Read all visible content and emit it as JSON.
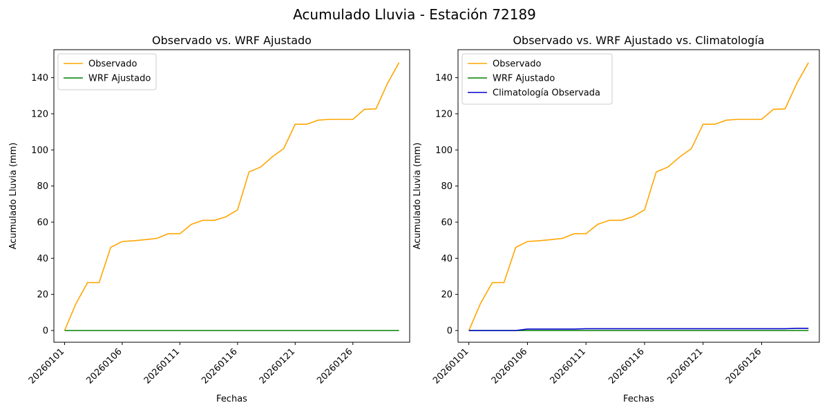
{
  "suptitle": "Acumulado Lluvia - Estación 72189",
  "chart_data": [
    {
      "type": "line",
      "title": "Observado vs. WRF Ajustado",
      "xlabel": "Fechas",
      "ylabel": "Acumulado Lluvia (mm)",
      "categories": [
        "20260101",
        "20260102",
        "20260103",
        "20260104",
        "20260105",
        "20260106",
        "20260107",
        "20260108",
        "20260109",
        "20260110",
        "20260111",
        "20260112",
        "20260113",
        "20260114",
        "20260115",
        "20260116",
        "20260117",
        "20260118",
        "20260119",
        "20260120",
        "20260121",
        "20260122",
        "20260123",
        "20260124",
        "20260125",
        "20260126",
        "20260127",
        "20260128",
        "20260129",
        "20260130"
      ],
      "xtick_labels": [
        "20260101",
        "20260106",
        "20260111",
        "20260116",
        "20260121",
        "20260126"
      ],
      "yticks": [
        0,
        20,
        40,
        60,
        80,
        100,
        120,
        140
      ],
      "ylim": [
        -6.5,
        155.5
      ],
      "legend": "top-left",
      "series": [
        {
          "name": "Observado",
          "color": "#ffa500",
          "values": [
            0,
            15,
            26.5,
            26.5,
            46,
            49.3,
            49.7,
            50.3,
            51,
            53.6,
            53.6,
            58.8,
            61,
            61,
            63,
            66.8,
            87.8,
            90.5,
            96.1,
            100.7,
            114.2,
            114.2,
            116.5,
            116.9,
            116.9,
            116.9,
            122.5,
            122.7,
            136.8,
            148.3
          ]
        },
        {
          "name": "WRF Ajustado",
          "color": "#008000",
          "values": [
            0,
            0,
            0,
            0,
            0,
            0,
            0,
            0,
            0,
            0,
            0,
            0,
            0,
            0,
            0,
            0,
            0,
            0,
            0,
            0,
            0,
            0,
            0,
            0,
            0,
            0,
            0,
            0,
            0,
            0
          ]
        }
      ]
    },
    {
      "type": "line",
      "title": "Observado vs. WRF Ajustado vs. Climatología",
      "xlabel": "Fechas",
      "ylabel": "Acumulado Lluvia (mm)",
      "categories": [
        "20260101",
        "20260102",
        "20260103",
        "20260104",
        "20260105",
        "20260106",
        "20260107",
        "20260108",
        "20260109",
        "20260110",
        "20260111",
        "20260112",
        "20260113",
        "20260114",
        "20260115",
        "20260116",
        "20260117",
        "20260118",
        "20260119",
        "20260120",
        "20260121",
        "20260122",
        "20260123",
        "20260124",
        "20260125",
        "20260126",
        "20260127",
        "20260128",
        "20260129",
        "20260130"
      ],
      "xtick_labels": [
        "20260101",
        "20260106",
        "20260111",
        "20260116",
        "20260121",
        "20260126"
      ],
      "yticks": [
        0,
        20,
        40,
        60,
        80,
        100,
        120,
        140
      ],
      "ylim": [
        -6.5,
        155.5
      ],
      "legend": "top-left",
      "series": [
        {
          "name": "Observado",
          "color": "#ffa500",
          "values": [
            0,
            15,
            26.5,
            26.5,
            46,
            49.3,
            49.7,
            50.3,
            51,
            53.6,
            53.6,
            58.8,
            61,
            61,
            63,
            66.8,
            87.8,
            90.5,
            96.1,
            100.7,
            114.2,
            114.2,
            116.5,
            116.9,
            116.9,
            116.9,
            122.5,
            122.7,
            136.8,
            148.3
          ]
        },
        {
          "name": "WRF Ajustado",
          "color": "#008000",
          "values": [
            0,
            0,
            0,
            0,
            0,
            0,
            0,
            0,
            0,
            0,
            0,
            0,
            0,
            0,
            0,
            0,
            0,
            0,
            0,
            0,
            0,
            0,
            0,
            0,
            0,
            0,
            0,
            0,
            0,
            0
          ]
        },
        {
          "name": "Climatología Observada",
          "color": "#0000cd",
          "values": [
            0,
            0,
            0,
            0,
            0,
            0.8,
            0.8,
            0.8,
            0.8,
            0.8,
            1,
            1,
            1,
            1,
            1,
            1,
            1,
            1,
            1,
            1,
            1,
            1,
            1,
            1,
            1,
            1,
            1,
            1,
            1.2,
            1.2
          ]
        }
      ]
    }
  ]
}
